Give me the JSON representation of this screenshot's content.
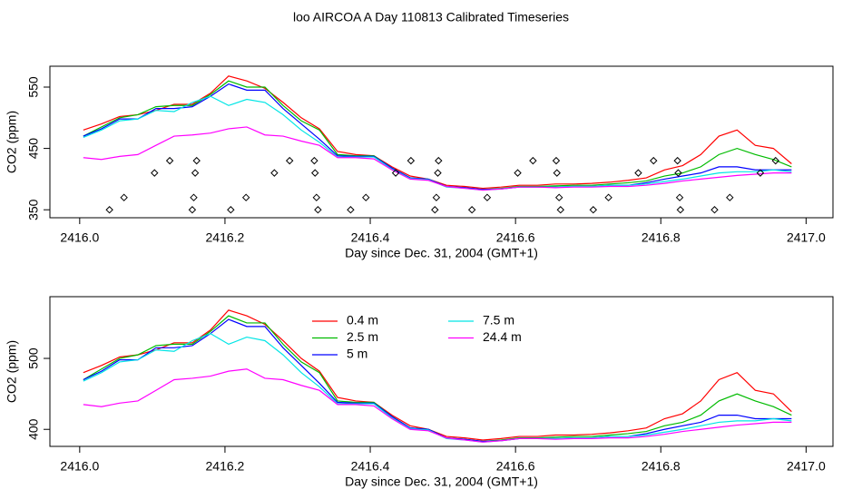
{
  "title": "loo AIRCOA A  Day 110813  Calibrated Timeseries",
  "chart_data": [
    {
      "type": "line",
      "xlabel": "Day since Dec. 31, 2004 (GMT+1)",
      "ylabel": "CO2 (ppm)",
      "xlim": [
        2415.959,
        2417.037
      ],
      "ylim": [
        337,
        584
      ],
      "xticks": [
        {
          "value": 2416,
          "label": "2416.0"
        },
        2416.2,
        2416.4,
        2416.6,
        2416.8,
        {
          "value": 2417,
          "label": "2417.0"
        }
      ],
      "yticks": [
        350,
        450,
        550
      ],
      "legend": false,
      "x": [
        2416.005,
        2416.03,
        2416.055,
        2416.08,
        2416.105,
        2416.13,
        2416.155,
        2416.18,
        2416.205,
        2416.23,
        2416.255,
        2416.28,
        2416.305,
        2416.33,
        2416.355,
        2416.38,
        2416.405,
        2416.43,
        2416.455,
        2416.48,
        2416.505,
        2416.53,
        2416.555,
        2416.58,
        2416.605,
        2416.63,
        2416.655,
        2416.68,
        2416.705,
        2416.73,
        2416.755,
        2416.78,
        2416.805,
        2416.83,
        2416.855,
        2416.88,
        2416.905,
        2416.93,
        2416.955,
        2416.98
      ],
      "series": [
        {
          "name": "0.4 m",
          "color": "#ff0000",
          "values": [
            480,
            490,
            502,
            505,
            512,
            522,
            522,
            540,
            568,
            560,
            548,
            525,
            500,
            482,
            445,
            440,
            438,
            420,
            405,
            400,
            390,
            388,
            385,
            387,
            390,
            390,
            392,
            392,
            393,
            395,
            398,
            402,
            415,
            422,
            440,
            470,
            480,
            455,
            450,
            425
          ]
        },
        {
          "name": "2.5 m",
          "color": "#00bb00",
          "values": [
            470,
            485,
            500,
            505,
            518,
            520,
            520,
            538,
            560,
            550,
            550,
            520,
            495,
            480,
            440,
            438,
            438,
            418,
            402,
            400,
            388,
            386,
            383,
            385,
            388,
            388,
            389,
            390,
            390,
            392,
            394,
            397,
            405,
            410,
            420,
            440,
            450,
            440,
            432,
            420
          ]
        },
        {
          "name": "5 m",
          "color": "#0000ff",
          "values": [
            470,
            482,
            498,
            498,
            515,
            515,
            518,
            535,
            555,
            545,
            545,
            515,
            490,
            465,
            438,
            437,
            437,
            418,
            402,
            400,
            388,
            386,
            383,
            384,
            387,
            387,
            387,
            388,
            388,
            390,
            390,
            394,
            400,
            405,
            410,
            420,
            420,
            415,
            415,
            415
          ]
        },
        {
          "name": "7.5 m",
          "color": "#00e5e5",
          "values": [
            468,
            480,
            495,
            498,
            512,
            510,
            525,
            535,
            520,
            530,
            525,
            505,
            480,
            460,
            436,
            436,
            436,
            416,
            401,
            399,
            387,
            385,
            382,
            384,
            387,
            387,
            387,
            388,
            388,
            390,
            390,
            392,
            396,
            400,
            405,
            410,
            412,
            412,
            415,
            412
          ]
        },
        {
          "name": "24.4 m",
          "color": "#ff00ff",
          "values": [
            435,
            432,
            437,
            440,
            455,
            470,
            472,
            475,
            482,
            485,
            472,
            470,
            462,
            455,
            435,
            435,
            433,
            415,
            400,
            398,
            388,
            385,
            382,
            384,
            387,
            387,
            386,
            387,
            387,
            388,
            388,
            390,
            393,
            397,
            400,
            403,
            406,
            408,
            410,
            410
          ]
        }
      ],
      "markers": {
        "x": [
          2416.041,
          2416.061,
          2416.103,
          2416.124,
          2416.155,
          2416.157,
          2416.159,
          2416.161,
          2416.208,
          2416.229,
          2416.268,
          2416.289,
          2416.323,
          2416.324,
          2416.326,
          2416.328,
          2416.373,
          2416.394,
          2416.435,
          2416.456,
          2416.489,
          2416.491,
          2416.493,
          2416.494,
          2416.54,
          2416.561,
          2416.603,
          2416.624,
          2416.656,
          2416.657,
          2416.66,
          2416.662,
          2416.707,
          2416.728,
          2416.769,
          2416.79,
          2416.823,
          2416.824,
          2416.826,
          2416.827,
          2416.874,
          2416.895,
          2416.937,
          2416.958
        ],
        "values": [
          350,
          370,
          410,
          430,
          350,
          370,
          410,
          430,
          350,
          370,
          410,
          430,
          430,
          410,
          370,
          350,
          350,
          370,
          410,
          430,
          350,
          370,
          410,
          430,
          350,
          370,
          410,
          430,
          430,
          410,
          370,
          350,
          350,
          370,
          410,
          430,
          430,
          410,
          370,
          350,
          350,
          370,
          410,
          430
        ]
      }
    },
    {
      "type": "line",
      "xlabel": "Day since Dec. 31, 2004 (GMT+1)",
      "ylabel": "CO2 (ppm)",
      "xlim": [
        2415.959,
        2417.037
      ],
      "ylim": [
        376,
        587
      ],
      "xticks": [
        {
          "value": 2416,
          "label": "2416.0"
        },
        2416.2,
        2416.4,
        2416.6,
        2416.8,
        {
          "value": 2417,
          "label": "2417.0"
        }
      ],
      "yticks": [
        400,
        500
      ],
      "legend": true,
      "x": [
        2416.005,
        2416.03,
        2416.055,
        2416.08,
        2416.105,
        2416.13,
        2416.155,
        2416.18,
        2416.205,
        2416.23,
        2416.255,
        2416.28,
        2416.305,
        2416.33,
        2416.355,
        2416.38,
        2416.405,
        2416.43,
        2416.455,
        2416.48,
        2416.505,
        2416.53,
        2416.555,
        2416.58,
        2416.605,
        2416.63,
        2416.655,
        2416.68,
        2416.705,
        2416.73,
        2416.755,
        2416.78,
        2416.805,
        2416.83,
        2416.855,
        2416.88,
        2416.905,
        2416.93,
        2416.955,
        2416.98
      ],
      "series": [
        {
          "name": "0.4 m",
          "color": "#ff0000",
          "values": [
            480,
            490,
            502,
            505,
            512,
            522,
            522,
            540,
            568,
            560,
            548,
            525,
            500,
            482,
            445,
            440,
            438,
            420,
            405,
            400,
            390,
            388,
            385,
            387,
            390,
            390,
            392,
            392,
            393,
            395,
            398,
            402,
            415,
            422,
            440,
            470,
            480,
            455,
            450,
            425
          ]
        },
        {
          "name": "2.5 m",
          "color": "#00bb00",
          "values": [
            470,
            485,
            500,
            505,
            518,
            520,
            520,
            538,
            560,
            550,
            550,
            520,
            495,
            480,
            440,
            438,
            438,
            418,
            402,
            400,
            388,
            386,
            383,
            385,
            388,
            388,
            389,
            390,
            390,
            392,
            394,
            397,
            405,
            410,
            420,
            440,
            450,
            440,
            432,
            420
          ]
        },
        {
          "name": "5 m",
          "color": "#0000ff",
          "values": [
            470,
            482,
            498,
            498,
            515,
            515,
            518,
            535,
            555,
            545,
            545,
            515,
            490,
            465,
            438,
            437,
            437,
            418,
            402,
            400,
            388,
            386,
            383,
            384,
            387,
            387,
            387,
            388,
            388,
            390,
            390,
            394,
            400,
            405,
            410,
            420,
            420,
            415,
            415,
            415
          ]
        },
        {
          "name": "7.5 m",
          "color": "#00e5e5",
          "values": [
            468,
            480,
            495,
            498,
            512,
            510,
            525,
            535,
            520,
            530,
            525,
            505,
            480,
            460,
            436,
            436,
            436,
            416,
            401,
            399,
            387,
            385,
            382,
            384,
            387,
            387,
            387,
            388,
            388,
            390,
            390,
            392,
            396,
            400,
            405,
            410,
            412,
            412,
            415,
            412
          ]
        },
        {
          "name": "24.4 m",
          "color": "#ff00ff",
          "values": [
            435,
            432,
            437,
            440,
            455,
            470,
            472,
            475,
            482,
            485,
            472,
            470,
            462,
            455,
            435,
            435,
            433,
            415,
            400,
            398,
            388,
            385,
            382,
            384,
            387,
            387,
            386,
            387,
            387,
            388,
            388,
            390,
            393,
            397,
            400,
            403,
            406,
            408,
            410,
            410
          ]
        }
      ]
    }
  ]
}
